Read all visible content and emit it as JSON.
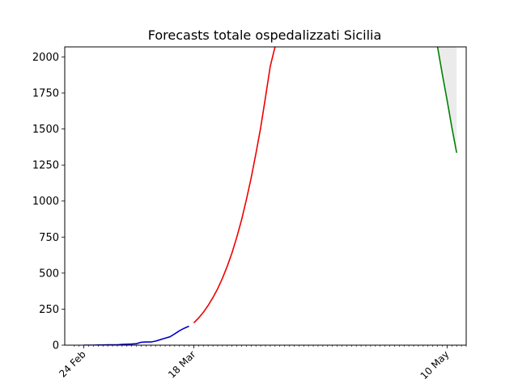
{
  "chart_data": {
    "type": "line",
    "title": "Forecasts totale ospedalizzati Sicilia",
    "xlabel": "",
    "ylabel": "",
    "x_axis": {
      "start": "2020-02-20",
      "end": "2020-05-14",
      "labeled_ticks": [
        {
          "date": "2020-02-24",
          "label": "24 Feb"
        },
        {
          "date": "2020-03-18",
          "label": "18 Mar"
        },
        {
          "date": "2020-05-10",
          "label": "10 May"
        }
      ]
    },
    "ylim": [
      0,
      2070
    ],
    "yticks": [
      0,
      250,
      500,
      750,
      1000,
      1250,
      1500,
      1750,
      2000
    ],
    "grid": false,
    "legend": "none",
    "series": [
      {
        "color": "#0000cc",
        "points": [
          [
            "2020-02-24",
            0
          ],
          [
            "2020-02-25",
            0
          ],
          [
            "2020-02-26",
            0
          ],
          [
            "2020-02-27",
            1
          ],
          [
            "2020-02-28",
            1
          ],
          [
            "2020-02-29",
            2
          ],
          [
            "2020-03-01",
            3
          ],
          [
            "2020-03-02",
            3
          ],
          [
            "2020-03-03",
            5
          ],
          [
            "2020-03-04",
            7
          ],
          [
            "2020-03-05",
            8
          ],
          [
            "2020-03-06",
            10
          ],
          [
            "2020-03-07",
            20
          ],
          [
            "2020-03-08",
            22
          ],
          [
            "2020-03-09",
            22
          ],
          [
            "2020-03-10",
            28
          ],
          [
            "2020-03-11",
            38
          ],
          [
            "2020-03-12",
            48
          ],
          [
            "2020-03-13",
            58
          ],
          [
            "2020-03-14",
            78
          ],
          [
            "2020-03-15",
            100
          ],
          [
            "2020-03-16",
            117
          ],
          [
            "2020-03-17",
            132
          ]
        ]
      },
      {
        "color": "#ee0000",
        "points": [
          [
            "2020-03-18",
            155
          ],
          [
            "2020-03-19",
            188
          ],
          [
            "2020-03-20",
            228
          ],
          [
            "2020-03-21",
            275
          ],
          [
            "2020-03-22",
            330
          ],
          [
            "2020-03-23",
            392
          ],
          [
            "2020-03-24",
            465
          ],
          [
            "2020-03-25",
            548
          ],
          [
            "2020-03-26",
            642
          ],
          [
            "2020-03-27",
            750
          ],
          [
            "2020-03-28",
            870
          ],
          [
            "2020-03-29",
            1010
          ],
          [
            "2020-03-30",
            1160
          ],
          [
            "2020-03-31",
            1330
          ],
          [
            "2020-04-01",
            1510
          ],
          [
            "2020-04-02",
            1720
          ],
          [
            "2020-04-03",
            1935
          ],
          [
            "2020-04-04",
            2070
          ]
        ]
      },
      {
        "color": "#008000",
        "points": [
          [
            "2020-05-08",
            2070
          ],
          [
            "2020-05-09",
            1880
          ],
          [
            "2020-05-10",
            1700
          ],
          [
            "2020-05-11",
            1510
          ],
          [
            "2020-05-12",
            1335
          ]
        ]
      }
    ],
    "band": {
      "color": "#ebebeb",
      "upper": [
        [
          "2020-05-08",
          2070
        ],
        [
          "2020-05-12",
          2070
        ]
      ],
      "lower": [
        [
          "2020-05-08",
          2070
        ],
        [
          "2020-05-09",
          1880
        ],
        [
          "2020-05-10",
          1700
        ],
        [
          "2020-05-11",
          1510
        ],
        [
          "2020-05-12",
          1335
        ]
      ]
    }
  }
}
